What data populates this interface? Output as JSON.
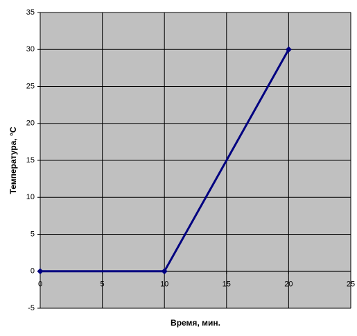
{
  "chart_data": {
    "type": "line",
    "xlabel": "Время, мин.",
    "ylabel": "Температура, °С",
    "x": [
      0,
      10,
      20
    ],
    "values": [
      0,
      0,
      30
    ],
    "color": "#000080",
    "marker": "diamond",
    "xlim": [
      0,
      25
    ],
    "xticks": [
      0,
      5,
      10,
      15,
      20,
      25
    ],
    "ylim": [
      -5,
      35
    ],
    "yticks": [
      -5,
      0,
      5,
      10,
      15,
      20,
      25,
      30,
      35
    ],
    "grid": true,
    "plot_background": "#c0c0c0"
  }
}
